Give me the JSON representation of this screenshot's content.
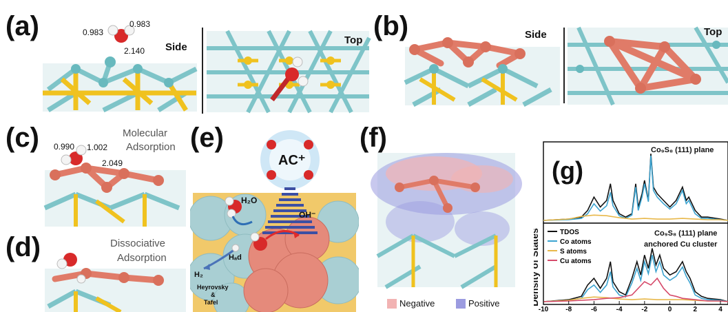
{
  "panels": {
    "a": {
      "label": "(a)",
      "bond1": "0.983",
      "bond2": "0.983",
      "bond3": "2.140",
      "side": "Side",
      "top": "Top"
    },
    "b": {
      "label": "(b)",
      "side": "Side",
      "top": "Top"
    },
    "c": {
      "label": "(c)",
      "bond1": "0.990",
      "bond2": "1.002",
      "bond3": "2.049",
      "desc1": "Molecular",
      "desc2": "Adsorption"
    },
    "d": {
      "label": "(d)",
      "desc1": "Dissociative",
      "desc2": "Adsorption"
    },
    "e": {
      "label": "(e)",
      "cation": "AC⁺",
      "h2o": "H₂O",
      "oh": "OH⁻",
      "h2": "H₂",
      "had": "Hₐd",
      "mech1": "Heyrovsky",
      "mech2": "&",
      "mech3": "Tafel"
    },
    "f": {
      "label": "(f)",
      "legend_neg": "Negative",
      "legend_pos": "Positive",
      "colors": {
        "negative": "#f2b3b3",
        "positive": "#9b9be0"
      }
    },
    "g": {
      "label": "(g)"
    }
  },
  "chart_data": {
    "type": "line",
    "ylabel": "Density of States",
    "x_ticks": [
      "-10",
      "-8",
      "-6",
      "-4",
      "-2",
      "0",
      "2",
      "4"
    ],
    "xlim": [
      -10,
      4.6
    ],
    "subplots": [
      {
        "title": "Co₉S₈ (111) plane",
        "series": [
          {
            "name": "TDOS",
            "color": "#111111",
            "x": [
              -10,
              -8,
              -7,
              -6.5,
              -6,
              -5.5,
              -5,
              -4.7,
              -4.5,
              -4,
              -3.5,
              -3,
              -2.7,
              -2.5,
              -2.2,
              -2,
              -1.7,
              -1.5,
              -1.3,
              -1,
              -0.5,
              0,
              0.5,
              1,
              1.3,
              1.5,
              2,
              2.5,
              3,
              4,
              4.6
            ],
            "y": [
              0,
              0.02,
              0.05,
              0.15,
              0.35,
              0.2,
              0.3,
              0.55,
              0.3,
              0.1,
              0.05,
              0.1,
              0.55,
              0.2,
              0.4,
              0.6,
              0.3,
              1.0,
              0.5,
              0.4,
              0.3,
              0.2,
              0.3,
              0.5,
              0.3,
              0.35,
              0.15,
              0.05,
              0.05,
              0.02,
              0.0
            ]
          },
          {
            "name": "Co atoms",
            "color": "#3ba3d0",
            "x": [
              -10,
              -8,
              -7,
              -6.5,
              -6,
              -5.5,
              -5,
              -4.7,
              -4.5,
              -4,
              -3.5,
              -3,
              -2.7,
              -2.5,
              -2.2,
              -2,
              -1.7,
              -1.5,
              -1.3,
              -1,
              -0.5,
              0,
              0.5,
              1,
              1.3,
              1.5,
              2,
              2.5,
              3,
              4,
              4.6
            ],
            "y": [
              0,
              0.01,
              0.03,
              0.1,
              0.25,
              0.14,
              0.22,
              0.42,
              0.22,
              0.07,
              0.03,
              0.08,
              0.5,
              0.15,
              0.35,
              0.55,
              0.28,
              0.97,
              0.45,
              0.35,
              0.25,
              0.17,
              0.25,
              0.45,
              0.25,
              0.3,
              0.1,
              0.03,
              0.03,
              0.01,
              0.0
            ]
          },
          {
            "name": "S atoms",
            "color": "#e8b84a",
            "x": [
              -10,
              -8,
              -7,
              -6,
              -5,
              -4,
              -3,
              -2,
              -1,
              0,
              1,
              2,
              3,
              4,
              4.6
            ],
            "y": [
              0,
              0.02,
              0.06,
              0.08,
              0.07,
              0.04,
              0.02,
              0.03,
              0.02,
              0.02,
              0.03,
              0.02,
              0.01,
              0.01,
              0
            ]
          }
        ]
      },
      {
        "title": "Co₉S₈ (111) plane",
        "title2": "anchored Cu cluster",
        "legend": [
          "TDOS",
          "Co atoms",
          "S atoms",
          "Cu atoms"
        ],
        "series": [
          {
            "name": "TDOS",
            "color": "#111111",
            "x": [
              -10,
              -8,
              -7,
              -6.5,
              -6,
              -5.5,
              -5,
              -4.7,
              -4.5,
              -4,
              -3.5,
              -3,
              -2.6,
              -2.3,
              -2,
              -1.7,
              -1.4,
              -1.1,
              -0.8,
              -0.5,
              0,
              0.5,
              1,
              1.3,
              1.6,
              2,
              2.5,
              3,
              4,
              4.6
            ],
            "y": [
              0,
              0.03,
              0.08,
              0.25,
              0.35,
              0.2,
              0.35,
              0.6,
              0.3,
              0.15,
              0.1,
              0.35,
              0.6,
              0.4,
              0.7,
              0.5,
              0.8,
              0.55,
              0.7,
              0.5,
              0.4,
              0.45,
              0.6,
              0.45,
              0.35,
              0.15,
              0.08,
              0.05,
              0.03,
              0.0
            ]
          },
          {
            "name": "Co atoms",
            "color": "#3ba3d0",
            "x": [
              -10,
              -8,
              -7,
              -6.5,
              -6,
              -5.5,
              -5,
              -4.7,
              -4.5,
              -4,
              -3.5,
              -3,
              -2.6,
              -2.3,
              -2,
              -1.7,
              -1.4,
              -1.1,
              -0.8,
              -0.5,
              0,
              0.5,
              1,
              1.3,
              1.6,
              2,
              2.5,
              3,
              4,
              4.6
            ],
            "y": [
              0,
              0.02,
              0.05,
              0.18,
              0.25,
              0.14,
              0.25,
              0.45,
              0.22,
              0.1,
              0.07,
              0.28,
              0.5,
              0.32,
              0.6,
              0.42,
              0.7,
              0.45,
              0.6,
              0.4,
              0.32,
              0.38,
              0.52,
              0.38,
              0.28,
              0.1,
              0.05,
              0.03,
              0.02,
              0.0
            ]
          },
          {
            "name": "S atoms",
            "color": "#e8b84a",
            "x": [
              -10,
              -8,
              -7,
              -6,
              -5,
              -4,
              -3,
              -2,
              -1,
              0,
              1,
              2,
              3,
              4,
              4.6
            ],
            "y": [
              0,
              0.02,
              0.05,
              0.07,
              0.06,
              0.04,
              0.03,
              0.04,
              0.03,
              0.03,
              0.03,
              0.02,
              0.01,
              0.01,
              0
            ]
          },
          {
            "name": "Cu atoms",
            "color": "#d64a6a",
            "x": [
              -10,
              -8,
              -6,
              -5,
              -4,
              -3,
              -2.5,
              -2,
              -1.5,
              -1,
              -0.5,
              0,
              0.5,
              1,
              2,
              3,
              4,
              4.6
            ],
            "y": [
              0,
              0.01,
              0.03,
              0.05,
              0.06,
              0.1,
              0.2,
              0.3,
              0.25,
              0.35,
              0.2,
              0.1,
              0.08,
              0.05,
              0.03,
              0.01,
              0.01,
              0
            ]
          }
        ]
      }
    ]
  }
}
